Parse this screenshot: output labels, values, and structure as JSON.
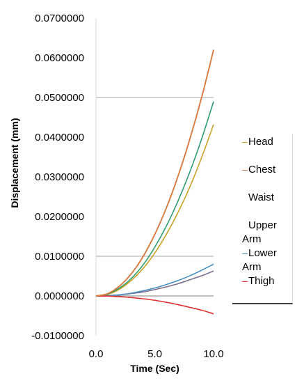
{
  "chart_data": {
    "type": "line",
    "title": "",
    "xlabel": "Time (Sec)",
    "ylabel": "Displacement (mm)",
    "xlim": [
      0,
      10
    ],
    "ylim": [
      -0.01,
      0.07
    ],
    "x_ticks": [
      "0.0",
      "5.0",
      "10.0"
    ],
    "y_ticks": [
      "-0.0100000",
      "0.0000000",
      "0.0100000",
      "0.0200000",
      "0.0300000",
      "0.0400000",
      "0.0500000",
      "0.0600000",
      "0.0700000"
    ],
    "gridlines_at": [
      0.01,
      0.05
    ],
    "legend_position": "right",
    "x": [
      0,
      1,
      2,
      3,
      4,
      5,
      6,
      7,
      8,
      9,
      10
    ],
    "series": [
      {
        "name": "Head",
        "color": "#c9a227",
        "values": [
          0,
          0.0004,
          0.0017,
          0.0039,
          0.0069,
          0.0108,
          0.0156,
          0.0212,
          0.0276,
          0.035,
          0.0432
        ]
      },
      {
        "name": "Chest",
        "color": "#e07b39",
        "values": [
          0,
          0.0006,
          0.0025,
          0.0056,
          0.0099,
          0.0155,
          0.0223,
          0.0304,
          0.0397,
          0.0502,
          0.062
        ]
      },
      {
        "name": "Waist",
        "color": "#a6a6a6",
        "values": [
          0,
          0.0006,
          0.0025,
          0.0056,
          0.0099,
          0.0155,
          0.0223,
          0.0304,
          0.0397,
          0.0502,
          0.062
        ]
      },
      {
        "name": "Upper Arm",
        "color": "#2e9e6e",
        "values": [
          0,
          0.0005,
          0.002,
          0.0044,
          0.0078,
          0.0123,
          0.0177,
          0.0241,
          0.0314,
          0.0397,
          0.049
        ]
      },
      {
        "name": "Lower Arm",
        "color": "#4a8fc1",
        "values": [
          0,
          0.0001,
          0.0003,
          0.0007,
          0.0013,
          0.002,
          0.0029,
          0.0039,
          0.0051,
          0.0065,
          0.008
        ]
      },
      {
        "name": "Thigh",
        "color": "#e03030",
        "values": [
          0,
          -4e-05,
          -0.00018,
          -0.0004,
          -0.0007,
          -0.0011,
          -0.0016,
          -0.0022,
          -0.0029,
          -0.0036,
          -0.0045
        ]
      }
    ],
    "unlabeled_series": [
      {
        "color": "#000000",
        "values": [
          0,
          0.0006,
          0.0025,
          0.0056,
          0.0099,
          0.0155,
          0.0223,
          0.0304,
          0.0397,
          0.0502,
          0.062
        ]
      },
      {
        "color": "#7f6f8f",
        "values": [
          0,
          6e-05,
          0.00025,
          0.0006,
          0.001,
          0.0016,
          0.0023,
          0.0031,
          0.0041,
          0.0051,
          0.0063
        ]
      }
    ]
  }
}
